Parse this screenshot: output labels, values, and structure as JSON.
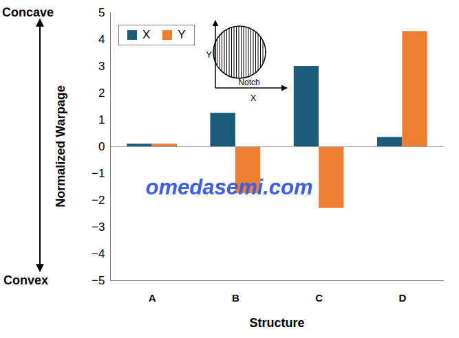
{
  "chart_data": {
    "type": "bar",
    "categories": [
      "A",
      "B",
      "C",
      "D"
    ],
    "series": [
      {
        "name": "X",
        "color": "#1b5c7a",
        "values": [
          0.1,
          1.25,
          3.0,
          0.35
        ]
      },
      {
        "name": "Y",
        "color": "#ed7d31",
        "values": [
          0.1,
          -1.75,
          -2.3,
          4.3
        ]
      }
    ],
    "x_label": "Structure",
    "y_label": "Normalized Warpage",
    "ylim": [
      -5,
      5
    ],
    "yticks": [
      -5,
      -4,
      -3,
      -2,
      -1,
      0,
      1,
      2,
      3,
      4,
      5
    ],
    "legend": "top-left",
    "annotations": {
      "top": "Concave",
      "bottom": "Convex",
      "watermark": "omedasemi.com"
    },
    "inset": {
      "x_label": "X",
      "y_label": "Y",
      "notch_label": "Notch"
    }
  }
}
